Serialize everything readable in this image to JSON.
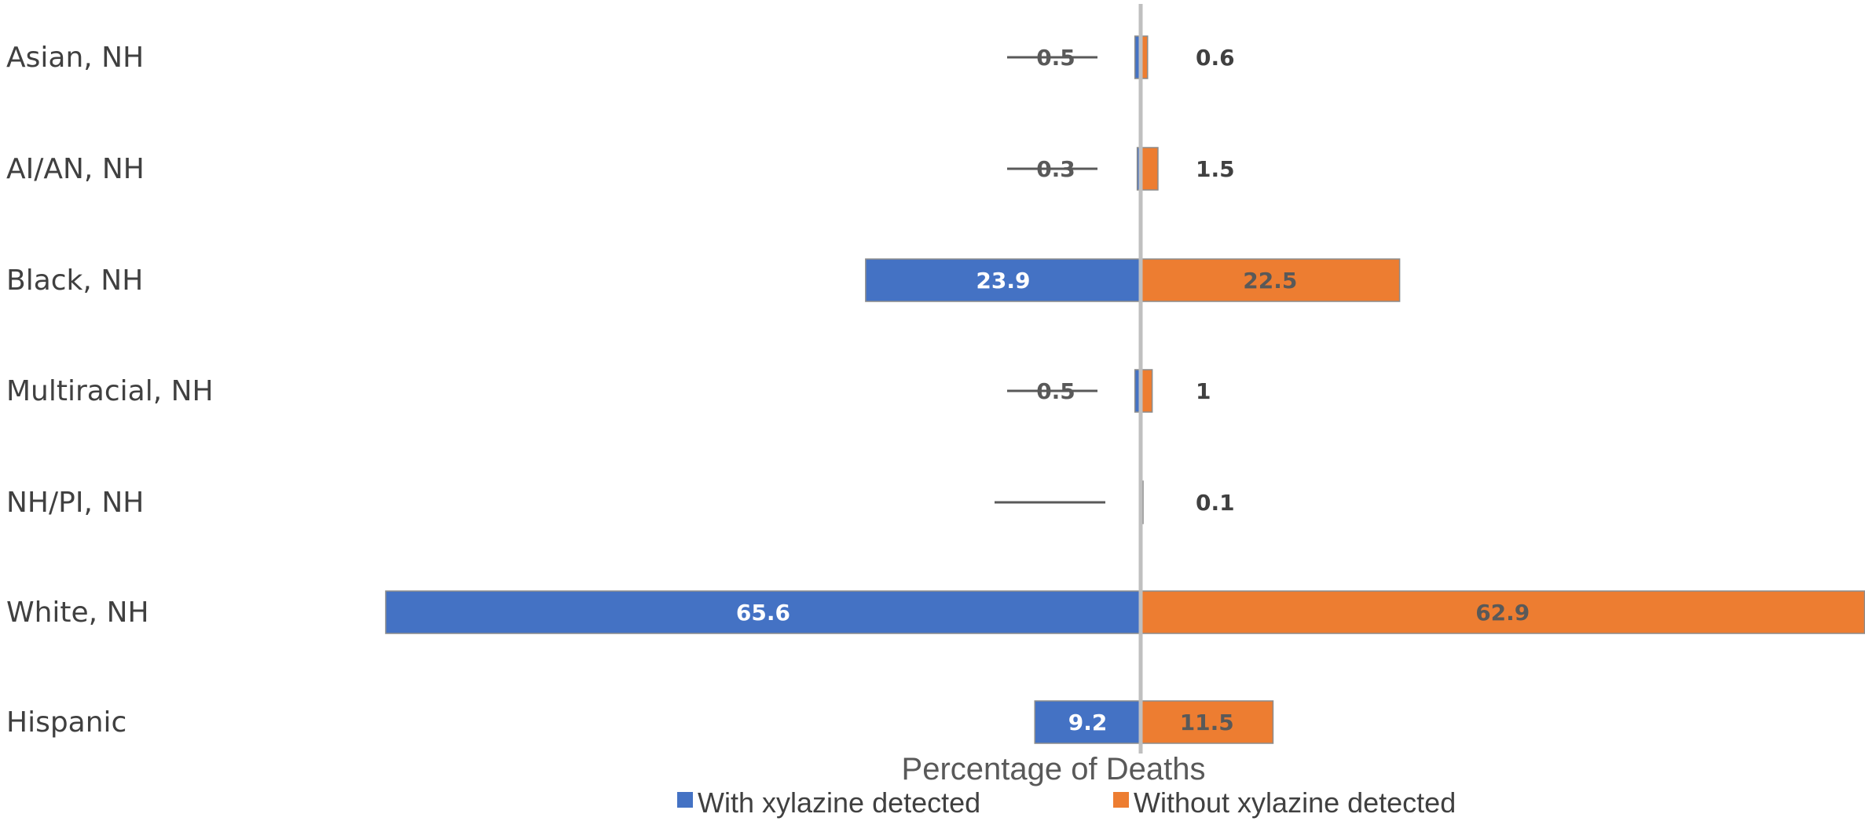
{
  "chart_data": {
    "type": "bar",
    "orientation": "horizontal-diverging",
    "categories": [
      "Asian, NH",
      "AI/AN, NH",
      "Black, NH",
      "Multiracial, NH",
      "NH/PI, NH",
      "White, NH",
      "Hispanic"
    ],
    "series": [
      {
        "name": "With xylazine detected",
        "values": [
          0.5,
          0.3,
          23.9,
          0.5,
          0.0,
          65.6,
          9.2
        ],
        "labels": [
          "0.5",
          "0.3",
          "23.9",
          "0.5",
          "",
          "65.6",
          "9.2"
        ],
        "color": "#4472C4",
        "direction": "left"
      },
      {
        "name": "Without xylazine detected",
        "values": [
          0.6,
          1.5,
          22.5,
          1.0,
          0.1,
          62.9,
          11.5
        ],
        "labels": [
          "0.6",
          "1.5",
          "22.5",
          "1",
          "0.1",
          "62.9",
          "11.5"
        ],
        "color": "#ED7D31",
        "direction": "right"
      }
    ],
    "xlabel": "Percentage of Deaths",
    "title": "",
    "legend_position": "bottom",
    "grid": false
  }
}
